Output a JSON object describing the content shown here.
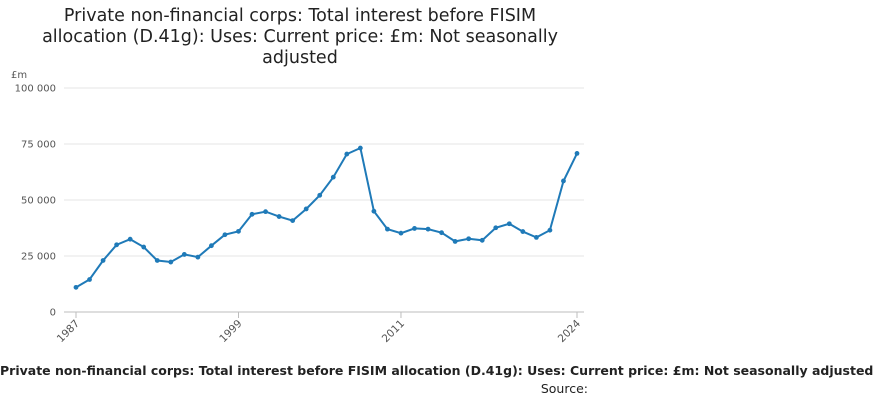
{
  "title": "Private non-financial corps: Total interest before FISIM allocation (D.41g): Uses: Current price: £m: Not seasonally adjusted",
  "footer": {
    "series_label": "Private non-financial corps: Total interest before FISIM allocation (D.41g): Uses: Current price: £m: Not seasonally adjusted",
    "source_label": "Source:"
  },
  "chart_data": {
    "type": "line",
    "title": "Private non-financial corps: Total interest before FISIM allocation (D.41g): Uses: Current price: £m: Not seasonally adjusted",
    "ylabel": "£m",
    "xlabel": "",
    "ylim": [
      0,
      100000
    ],
    "yticks": [
      0,
      25000,
      50000,
      75000,
      100000
    ],
    "ytick_labels": [
      "0",
      "25 000",
      "50 000",
      "75 000",
      "100 000"
    ],
    "xticks": [
      1987,
      1999,
      2011,
      2024
    ],
    "xtick_labels": [
      "1987",
      "1999",
      "2011",
      "2024"
    ],
    "grid": true,
    "legend": "none",
    "color": "#1f7ab8",
    "x": [
      1987,
      1988,
      1989,
      1990,
      1991,
      1992,
      1993,
      1994,
      1995,
      1996,
      1997,
      1998,
      1999,
      2000,
      2001,
      2002,
      2003,
      2004,
      2005,
      2006,
      2007,
      2008,
      2009,
      2010,
      2011,
      2012,
      2013,
      2014,
      2015,
      2016,
      2017,
      2018,
      2019,
      2020,
      2021,
      2022,
      2023,
      2024
    ],
    "values": [
      11000,
      14500,
      23000,
      30000,
      32500,
      29000,
      23000,
      22300,
      25700,
      24500,
      29600,
      34500,
      36000,
      43600,
      44800,
      42600,
      40800,
      46000,
      52100,
      60200,
      70500,
      73200,
      45000,
      37000,
      35200,
      37300,
      37000,
      35400,
      31500,
      32700,
      32000,
      37600,
      39400,
      35900,
      33300,
      36500,
      58500,
      70800
    ]
  }
}
